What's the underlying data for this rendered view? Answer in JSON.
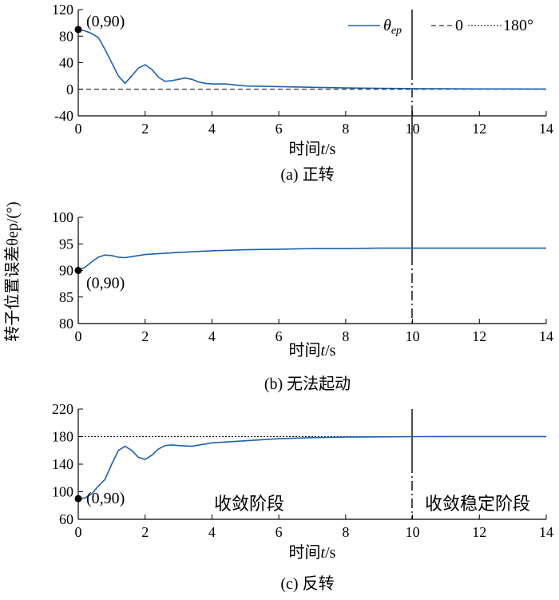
{
  "ylabel": "转子位置误差θep/(°)",
  "legend": {
    "series": "θep",
    "series_main": "θ",
    "series_sub": "ep",
    "ref0": "0",
    "ref180": "180°"
  },
  "stage_labels": {
    "converging": "收敛阶段",
    "stable": "收敛稳定阶段"
  },
  "point_label": "(0,90)",
  "x_ticks": [
    "0",
    "2",
    "4",
    "6",
    "8",
    "10",
    "12",
    "14"
  ],
  "chart_data": [
    {
      "type": "line",
      "caption": "(a) 正转",
      "xlabel": "时间t/s",
      "xlim": [
        0,
        14
      ],
      "ylim": [
        -40,
        120
      ],
      "y_ticks": [
        "-40",
        "0",
        "40",
        "80",
        "120"
      ],
      "reference": {
        "value": 0,
        "label": "0"
      },
      "vertical_marker_x": 10,
      "start_point": [
        0,
        90
      ],
      "series": [
        {
          "name": "θep",
          "x": [
            0,
            0.2,
            0.4,
            0.6,
            0.8,
            1.0,
            1.2,
            1.4,
            1.6,
            1.8,
            2.0,
            2.2,
            2.4,
            2.6,
            2.8,
            3.0,
            3.2,
            3.4,
            3.6,
            3.8,
            4.0,
            4.4,
            5.0,
            6.0,
            7.0,
            8.0,
            9.0,
            10.0,
            11.0,
            12.0,
            13.0,
            14.0
          ],
          "y": [
            90,
            88,
            84,
            78,
            60,
            40,
            20,
            9,
            20,
            32,
            37,
            30,
            18,
            12,
            13,
            15,
            17,
            15,
            11,
            9,
            8,
            8,
            5,
            4,
            3,
            2,
            1.5,
            1,
            0.8,
            0.6,
            0.5,
            0.4
          ]
        }
      ]
    },
    {
      "type": "line",
      "caption": "(b) 无法起动",
      "xlabel": "时间t/s",
      "xlim": [
        0,
        14
      ],
      "ylim": [
        80,
        100
      ],
      "y_ticks": [
        "80",
        "85",
        "90",
        "95",
        "100"
      ],
      "vertical_marker_x": 10,
      "start_point": [
        0,
        90
      ],
      "series": [
        {
          "name": "θep",
          "x": [
            0,
            0.2,
            0.4,
            0.6,
            0.8,
            1.0,
            1.2,
            1.4,
            1.6,
            2.0,
            3.0,
            4.0,
            5.0,
            6.0,
            7.0,
            8.0,
            9.0,
            10.0,
            11.0,
            12.0,
            13.0,
            14.0
          ],
          "y": [
            90,
            90.6,
            91.6,
            92.5,
            92.9,
            92.8,
            92.5,
            92.4,
            92.6,
            93.0,
            93.4,
            93.7,
            93.9,
            94.0,
            94.1,
            94.1,
            94.2,
            94.2,
            94.2,
            94.2,
            94.2,
            94.2
          ]
        }
      ]
    },
    {
      "type": "line",
      "caption": "(c) 反转",
      "xlabel": "时间t/s",
      "xlim": [
        0,
        14
      ],
      "ylim": [
        60,
        220
      ],
      "y_ticks": [
        "60",
        "100",
        "140",
        "180",
        "220"
      ],
      "reference": {
        "value": 180,
        "label": "180°"
      },
      "vertical_marker_x": 10,
      "start_point": [
        0,
        90
      ],
      "series": [
        {
          "name": "θep",
          "x": [
            0,
            0.2,
            0.4,
            0.6,
            0.8,
            1.0,
            1.2,
            1.4,
            1.6,
            1.8,
            2.0,
            2.2,
            2.4,
            2.6,
            2.8,
            3.0,
            3.4,
            4.0,
            5.0,
            6.0,
            7.0,
            8.0,
            9.0,
            10.0,
            11.0,
            12.0,
            13.0,
            14.0
          ],
          "y": [
            90,
            91,
            97,
            108,
            118,
            140,
            160,
            166,
            160,
            150,
            147,
            153,
            162,
            167,
            168,
            167,
            166,
            171,
            174,
            177,
            178.5,
            179.3,
            179.7,
            180,
            180.1,
            180.1,
            180.1,
            180.1
          ]
        }
      ]
    }
  ]
}
